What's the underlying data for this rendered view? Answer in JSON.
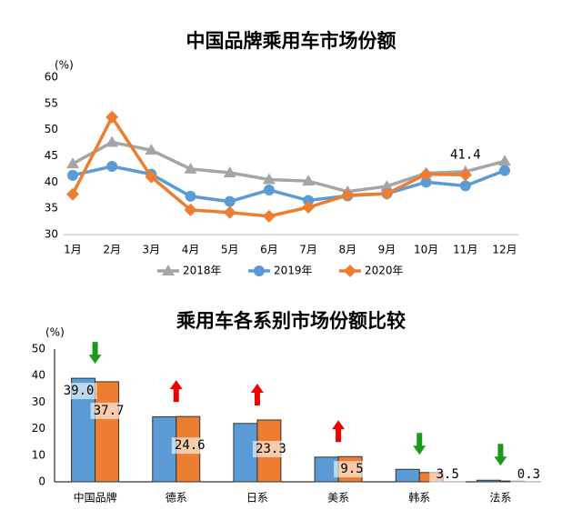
{
  "chart_data": [
    {
      "type": "line",
      "title": "中国品牌乘用车市场份额",
      "unit": "(%)",
      "categories": [
        "1月",
        "2月",
        "3月",
        "4月",
        "5月",
        "6月",
        "7月",
        "8月",
        "9月",
        "10月",
        "11月",
        "12月"
      ],
      "ylim": [
        30,
        60
      ],
      "yticks": [
        30,
        35,
        40,
        45,
        50,
        55,
        60
      ],
      "series": [
        {
          "name": "2018年",
          "color": "#a5a5a5",
          "marker": "triangle",
          "values": [
            43.5,
            47.6,
            46.1,
            42.5,
            41.8,
            40.5,
            40.2,
            38.2,
            39.2,
            41.7,
            42.0,
            44.0
          ]
        },
        {
          "name": "2019年",
          "color": "#5b9bd5",
          "marker": "circle",
          "values": [
            41.3,
            43.0,
            41.5,
            37.3,
            36.3,
            38.5,
            36.5,
            37.4,
            37.8,
            40.0,
            39.3,
            42.2
          ]
        },
        {
          "name": "2020年",
          "color": "#ed7d31",
          "marker": "diamond",
          "values": [
            37.7,
            52.4,
            41.0,
            34.7,
            34.2,
            33.5,
            35.2,
            37.5,
            37.8,
            41.5,
            41.4,
            null
          ],
          "value_labels": [
            null,
            null,
            null,
            null,
            null,
            null,
            null,
            null,
            null,
            null,
            "41.4",
            null
          ]
        }
      ]
    },
    {
      "type": "bar",
      "title": "乘用车各系别市场份额比较",
      "unit": "(%)",
      "categories": [
        "中国品牌",
        "德系",
        "日系",
        "美系",
        "韩系",
        "法系"
      ],
      "ylim": [
        0,
        50
      ],
      "yticks": [
        0,
        10,
        20,
        30,
        40,
        50
      ],
      "series": [
        {
          "color": "#5b9bd5",
          "values": [
            39.0,
            24.5,
            22.0,
            9.3,
            4.7,
            0.6
          ],
          "value_labels": [
            "39.0",
            null,
            null,
            null,
            null,
            null
          ]
        },
        {
          "color": "#ed7d31",
          "values": [
            37.7,
            24.6,
            23.3,
            9.5,
            3.5,
            0.3
          ],
          "value_labels": [
            "37.7",
            "24.6",
            "23.3",
            "9.5",
            "3.5",
            "0.3"
          ]
        }
      ]
    }
  ]
}
